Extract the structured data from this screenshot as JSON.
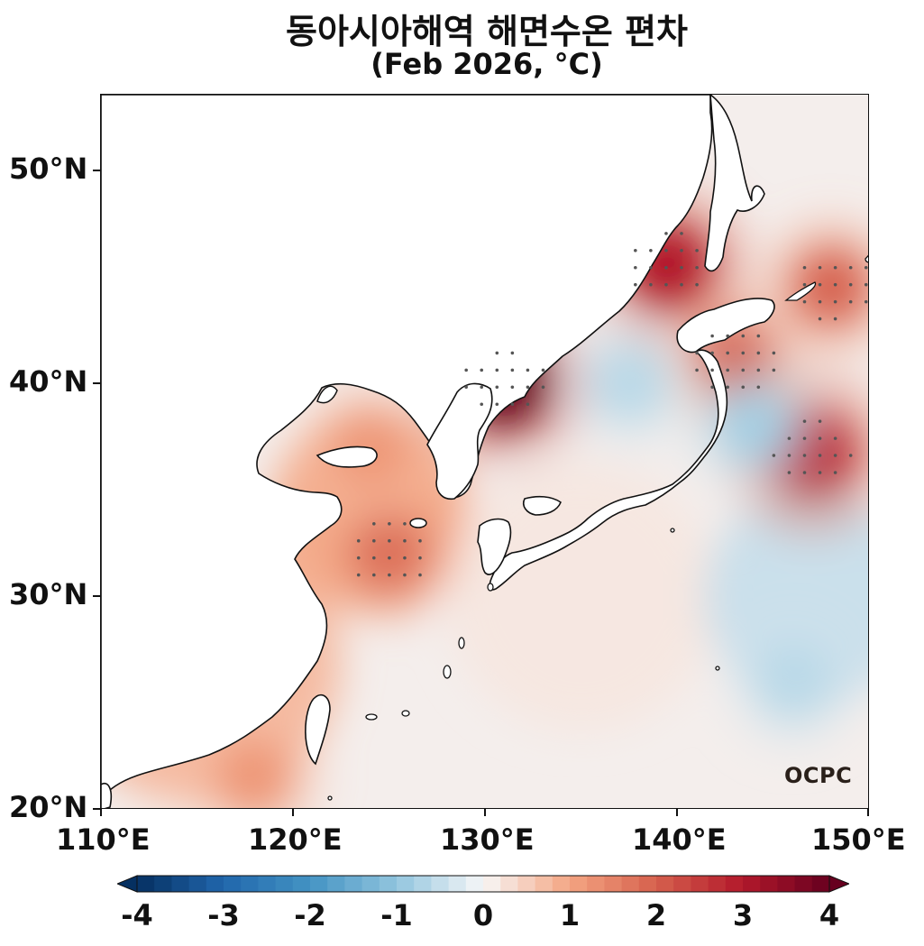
{
  "title": "동아시아해역 해면수온 편차",
  "subtitle": "(Feb 2026, °C)",
  "lat_labels": [
    "50°N",
    "40°N",
    "30°N",
    "20°N"
  ],
  "lon_labels": [
    "110°E",
    "120°E",
    "130°E",
    "140°E",
    "150°E"
  ],
  "colorbar": {
    "labels": [
      "-4",
      "-3",
      "-2",
      "-1",
      "0",
      "1",
      "2",
      "3",
      "4"
    ],
    "extend": "both",
    "colormap": "RdBu_r"
  },
  "logo": "OCPC",
  "colors": {
    "warm_max": "#67001f",
    "warm": "#d6604d",
    "neutral": "#f7f7f7",
    "cool": "#92c5de",
    "cool_max": "#053061"
  },
  "chart_data": {
    "type": "heatmap",
    "region": "East Asian seas",
    "variable": "sea surface temperature anomaly",
    "unit": "°C",
    "period": "Feb 2026",
    "lon_range": [
      110,
      150
    ],
    "lat_range": [
      20,
      53.5
    ],
    "value_range": [
      -4,
      4
    ],
    "anomaly_centers": [
      {
        "name": "East Sea north of Korea",
        "lon": 131,
        "lat": 40,
        "value": 4.0
      },
      {
        "name": "off Primorye",
        "lon": 139.5,
        "lat": 45.5,
        "value": 3.0
      },
      {
        "name": "off Sanriku east of Japan",
        "lon": 147,
        "lat": 36.7,
        "value": 2.8
      },
      {
        "name": "south of Hokkaido",
        "lon": 143,
        "lat": 41,
        "value": 2.0
      },
      {
        "name": "East China Sea",
        "lon": 125,
        "lat": 32,
        "value": 1.8
      },
      {
        "name": "northern Yellow Sea",
        "lon": 124,
        "lat": 37,
        "value": 1.2
      },
      {
        "name": "off Kuril Islands",
        "lon": 148,
        "lat": 44.5,
        "value": 2.0
      },
      {
        "name": "south of Taiwan",
        "lon": 118,
        "lat": 21.5,
        "value": 1.2
      },
      {
        "name": "east of Japan cold patch",
        "lon": 144,
        "lat": 38,
        "value": -0.8
      },
      {
        "name": "central East Sea cold patch",
        "lon": 137.5,
        "lat": 40,
        "value": -0.6
      },
      {
        "name": "subtropical NW Pacific",
        "lon": 146,
        "lat": 26,
        "value": -0.6
      }
    ],
    "grid": false,
    "legend": "colorbar bottom"
  }
}
